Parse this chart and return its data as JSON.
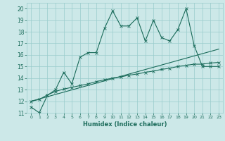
{
  "xlabel": "Humidex (Indice chaleur)",
  "bg_color": "#cce8e8",
  "grid_color": "#99cccc",
  "line_color": "#1a6b5a",
  "xlim": [
    -0.5,
    23.5
  ],
  "ylim": [
    11,
    20.5
  ],
  "yticks": [
    11,
    12,
    13,
    14,
    15,
    16,
    17,
    18,
    19,
    20
  ],
  "xticks": [
    0,
    1,
    2,
    3,
    4,
    5,
    6,
    7,
    8,
    9,
    10,
    11,
    12,
    13,
    14,
    15,
    16,
    17,
    18,
    19,
    20,
    21,
    22,
    23
  ],
  "series1_x": [
    0,
    1,
    2,
    3,
    4,
    5,
    6,
    7,
    8,
    9,
    10,
    11,
    12,
    13,
    14,
    15,
    16,
    17,
    18,
    19,
    20,
    21,
    22,
    23
  ],
  "series1_y": [
    11.5,
    11.0,
    12.5,
    13.0,
    14.5,
    13.5,
    15.8,
    16.2,
    16.2,
    18.3,
    19.8,
    18.5,
    18.5,
    19.2,
    17.2,
    19.0,
    17.5,
    17.2,
    18.2,
    20.0,
    16.8,
    15.0,
    15.0,
    15.0
  ],
  "series2_x": [
    0,
    1,
    2,
    3,
    4,
    5,
    6,
    7,
    8,
    9,
    10,
    11,
    12,
    13,
    14,
    15,
    16,
    17,
    18,
    19,
    20,
    21,
    22,
    23
  ],
  "series2_y": [
    12.0,
    12.15,
    12.55,
    12.85,
    13.05,
    13.2,
    13.35,
    13.5,
    13.7,
    13.85,
    14.0,
    14.1,
    14.25,
    14.35,
    14.5,
    14.6,
    14.75,
    14.85,
    15.0,
    15.1,
    15.2,
    15.2,
    15.3,
    15.35
  ],
  "series3_x": [
    0,
    23
  ],
  "series3_y": [
    12.0,
    16.5
  ],
  "marker_size": 2.5,
  "linewidth": 0.8
}
